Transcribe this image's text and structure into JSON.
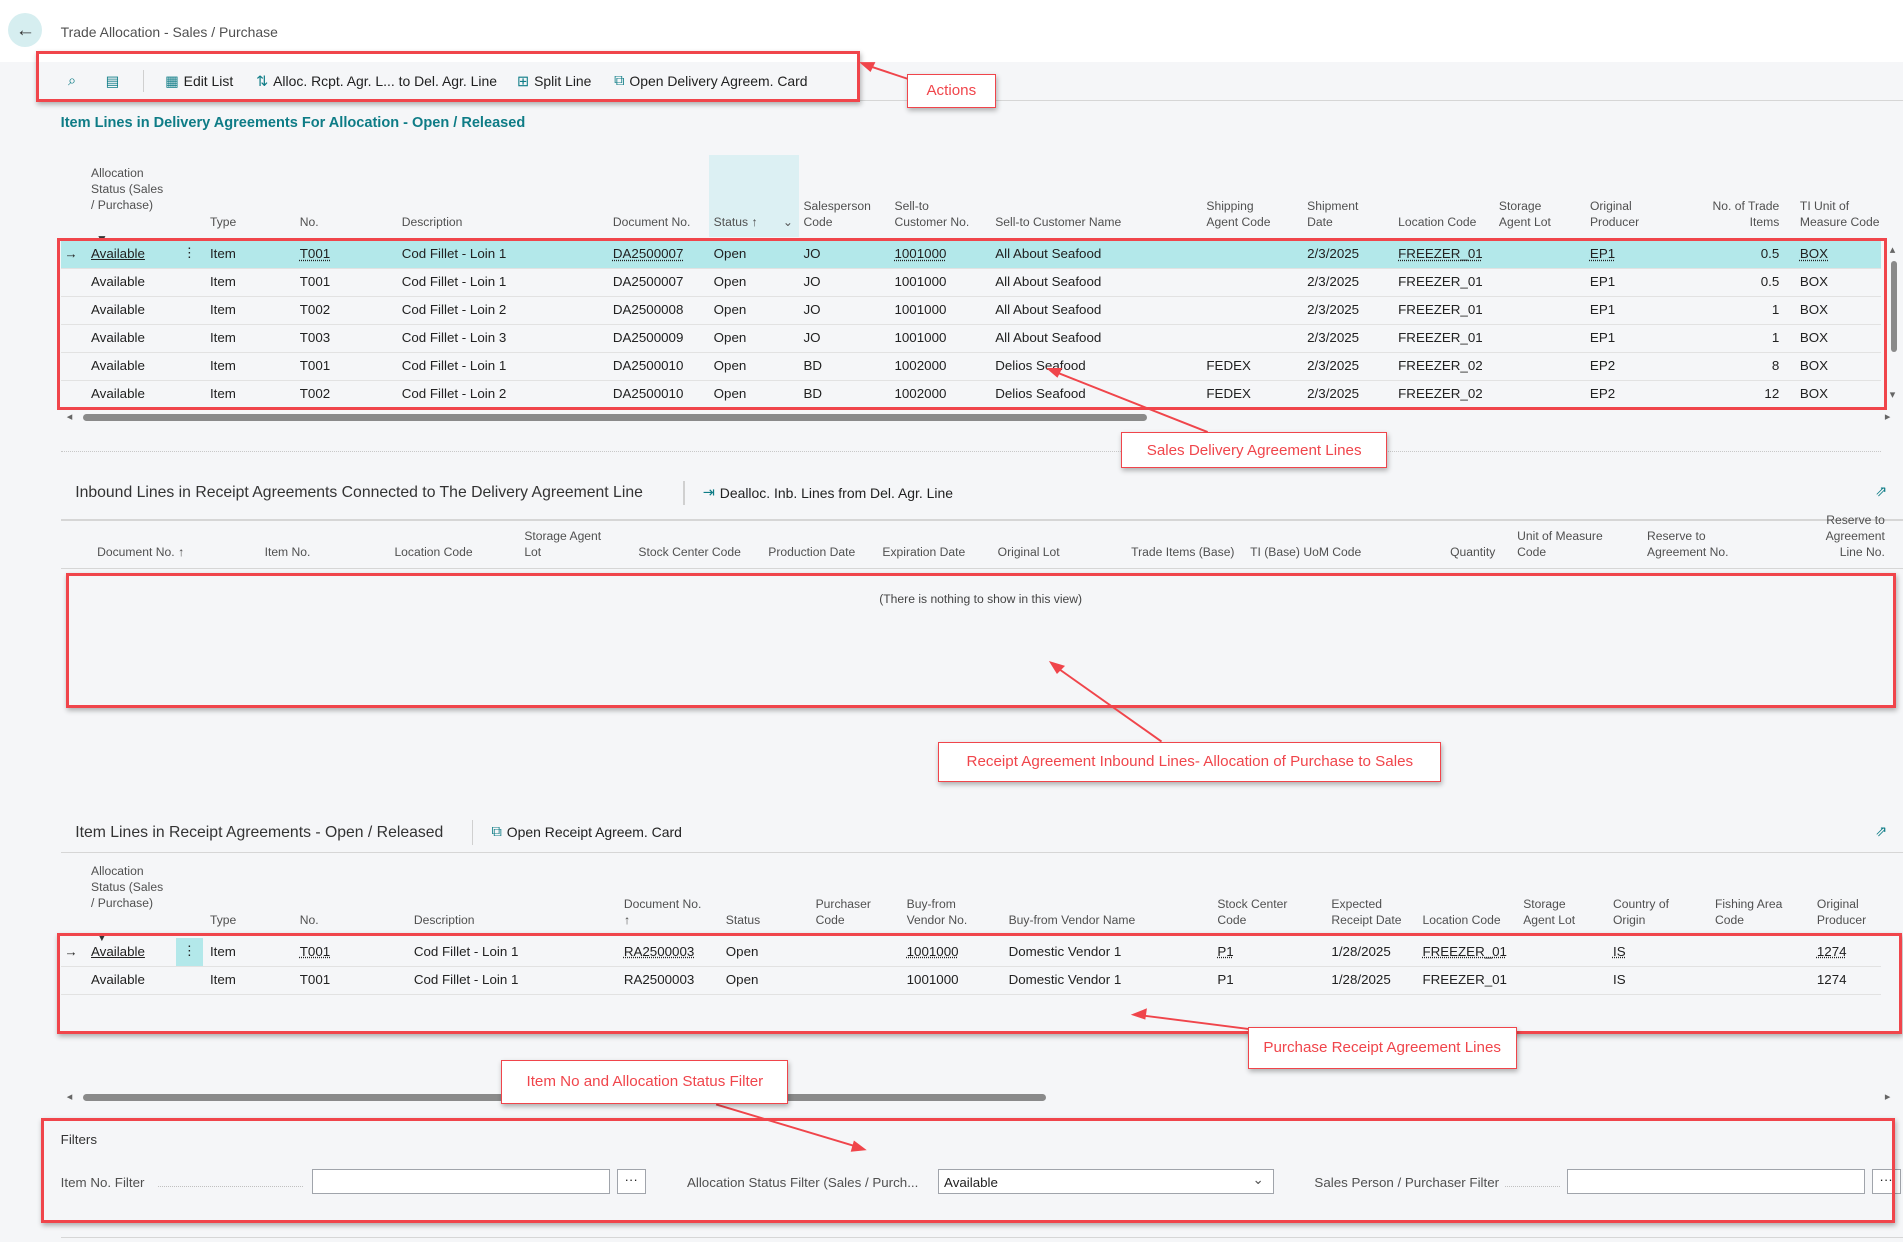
{
  "page": {
    "title": "Trade Allocation - Sales / Purchase"
  },
  "actions": {
    "edit_list": "Edit List",
    "alloc": "Alloc. Rcpt. Agr. L... to Del. Agr. Line",
    "split": "Split Line",
    "open_delivery": "Open Delivery Agreem. Card"
  },
  "delivery": {
    "title": "Item Lines in Delivery Agreements For Allocation - Open / Released",
    "headers": [
      "Allocation\nStatus (Sales\n/ Purchase)",
      "Type",
      "No.",
      "Description",
      "Document No.",
      "Status ↑",
      "Salesperson\nCode",
      "Sell-to\nCustomer No.",
      "Sell-to Customer Name",
      "Shipping\nAgent Code",
      "Shipment\nDate",
      "Location Code",
      "Storage\nAgent Lot",
      "Original\nProducer",
      "No. of Trade\nItems",
      "TI Unit of\nMeasure Code"
    ],
    "rows": [
      [
        "Available",
        "Item",
        "T001",
        "Cod Fillet - Loin 1",
        "DA2500007",
        "Open",
        "JO",
        "1001000",
        "All About Seafood",
        "",
        "2/3/2025",
        "FREEZER_01",
        "",
        "EP1",
        "0.5",
        "BOX"
      ],
      [
        "Available",
        "Item",
        "T001",
        "Cod Fillet - Loin 1",
        "DA2500007",
        "Open",
        "JO",
        "1001000",
        "All About Seafood",
        "",
        "2/3/2025",
        "FREEZER_01",
        "",
        "EP1",
        "0.5",
        "BOX"
      ],
      [
        "Available",
        "Item",
        "T002",
        "Cod Fillet - Loin 2",
        "DA2500008",
        "Open",
        "JO",
        "1001000",
        "All About Seafood",
        "",
        "2/3/2025",
        "FREEZER_01",
        "",
        "EP1",
        "1",
        "BOX"
      ],
      [
        "Available",
        "Item",
        "T003",
        "Cod Fillet - Loin 3",
        "DA2500009",
        "Open",
        "JO",
        "1001000",
        "All About Seafood",
        "",
        "2/3/2025",
        "FREEZER_01",
        "",
        "EP1",
        "1",
        "BOX"
      ],
      [
        "Available",
        "Item",
        "T001",
        "Cod Fillet - Loin 1",
        "DA2500010",
        "Open",
        "BD",
        "1002000",
        "Delios Seafood",
        "FEDEX",
        "2/3/2025",
        "FREEZER_02",
        "",
        "EP2",
        "8",
        "BOX"
      ],
      [
        "Available",
        "Item",
        "T002",
        "Cod Fillet - Loin 2",
        "DA2500010",
        "Open",
        "BD",
        "1002000",
        "Delios Seafood",
        "FEDEX",
        "2/3/2025",
        "FREEZER_02",
        "",
        "EP2",
        "12",
        "BOX"
      ]
    ]
  },
  "inbound": {
    "title": "Inbound Lines in Receipt Agreements Connected to The Delivery Agreement Line",
    "action": "Dealloc. Inb. Lines from Del. Agr. Line",
    "headers": [
      "Document No. ↑",
      "Item No.",
      "Location Code",
      "Storage Agent\nLot",
      "Stock Center Code",
      "Production Date",
      "Expiration Date",
      "Original Lot",
      "Trade Items (Base)",
      "TI (Base) UoM Code",
      "Quantity",
      "Unit of Measure\nCode",
      "Reserve to\nAgreement No.",
      "Reserve to\nAgreement Line No."
    ],
    "empty": "(There is nothing to show in this view)"
  },
  "receipt": {
    "title": "Item Lines in Receipt Agreements - Open / Released",
    "action": "Open Receipt Agreem. Card",
    "headers": [
      "Allocation\nStatus (Sales\n/ Purchase)",
      "Type",
      "No.",
      "Description",
      "Document No.\n↑",
      "Status",
      "Purchaser\nCode",
      "Buy-from\nVendor No.",
      "Buy-from Vendor Name",
      "Stock Center\nCode",
      "Expected\nReceipt Date",
      "Location Code",
      "Storage\nAgent Lot",
      "Country of\nOrigin",
      "Fishing Area\nCode",
      "Original\nProducer"
    ],
    "rows": [
      [
        "Available",
        "Item",
        "T001",
        "Cod Fillet - Loin 1",
        "RA2500003",
        "Open",
        "",
        "1001000",
        "Domestic Vendor 1",
        "P1",
        "1/28/2025",
        "FREEZER_01",
        "",
        "IS",
        "",
        "1274"
      ],
      [
        "Available",
        "Item",
        "T001",
        "Cod Fillet - Loin 1",
        "RA2500003",
        "Open",
        "",
        "1001000",
        "Domestic Vendor 1",
        "P1",
        "1/28/2025",
        "FREEZER_01",
        "",
        "IS",
        "",
        "1274"
      ]
    ]
  },
  "filters": {
    "title": "Filters",
    "item_no_label": "Item No. Filter",
    "item_no_value": "",
    "alloc_label": "Allocation Status Filter (Sales / Purch...",
    "alloc_value": "Available",
    "sp_label": "Sales Person / Purchaser Filter",
    "sp_value": "",
    "more": "···"
  },
  "callouts": {
    "actions": "Actions",
    "sales": "Sales Delivery Agreement Lines",
    "inbound": "Receipt Agreement Inbound Lines- Allocation of Purchase to Sales",
    "purchase": "Purchase Receipt Agreement Lines",
    "filter": "Item No and Allocation Status Filter"
  }
}
